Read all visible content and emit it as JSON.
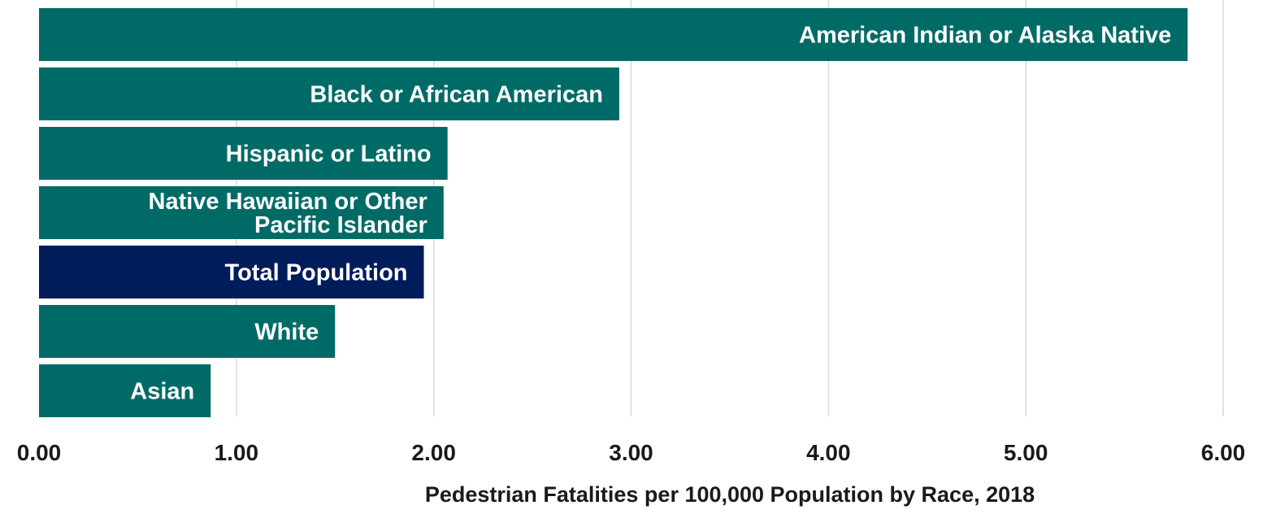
{
  "chart_data": {
    "type": "bar",
    "orientation": "horizontal",
    "title": "",
    "xlabel": "Pedestrian Fatalities per 100,000 Population by Race, 2018",
    "ylabel": "",
    "xlim": [
      0,
      6
    ],
    "x_ticks": [
      "0.00",
      "1.00",
      "2.00",
      "3.00",
      "4.00",
      "5.00",
      "6.00"
    ],
    "grid": "vertical",
    "legend": "none",
    "categories": [
      [
        "American Indian or Alaska Native"
      ],
      [
        "Black or African American"
      ],
      [
        "Hispanic or Latino"
      ],
      [
        "Native Hawaiian or Other",
        "Pacific Islander"
      ],
      [
        "Total Population"
      ],
      [
        "White"
      ],
      [
        "Asian"
      ]
    ],
    "values": [
      5.82,
      2.94,
      2.07,
      2.05,
      1.95,
      1.5,
      0.87
    ],
    "colors": [
      "#006b66",
      "#006b66",
      "#006b66",
      "#006b66",
      "#001c5a",
      "#006b66",
      "#006b66"
    ]
  }
}
